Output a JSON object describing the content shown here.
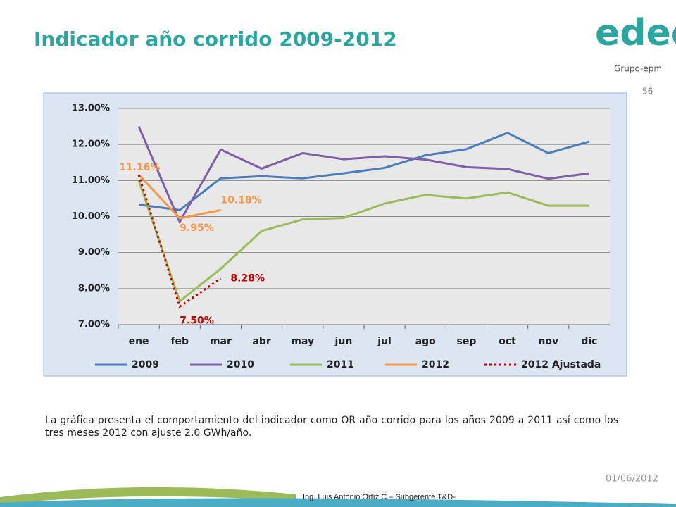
{
  "slide": {
    "title": "Indicador año corrido 2009-2012",
    "logo": "edeq",
    "group": "Grupo-epm",
    "page": "56",
    "text": "La gráfica presenta el comportamiento del indicador como OR año corrido para los años 2009 a 2011 así como los tres meses 2012 con ajuste 2.0 GWh/año.",
    "date": "01/06/2012",
    "footer": "Ing. Luis Antonio Ortíz C.– Subgerente T&D-"
  },
  "chart_data": {
    "type": "line",
    "categories": [
      "ene",
      "feb",
      "mar",
      "abr",
      "may",
      "jun",
      "jul",
      "ago",
      "sep",
      "oct",
      "nov",
      "dic"
    ],
    "ylim": [
      7,
      13
    ],
    "yticks": [
      {
        "value": 7,
        "label": "7.00%"
      },
      {
        "value": 8,
        "label": "8.00%"
      },
      {
        "value": 9,
        "label": "9.00%"
      },
      {
        "value": 10,
        "label": "10.00%"
      },
      {
        "value": 11,
        "label": "11.00%"
      },
      {
        "value": 12,
        "label": "12.00%"
      },
      {
        "value": 13,
        "label": "13.00%"
      }
    ],
    "grid": true,
    "legend": "bottom",
    "series": [
      {
        "name": "2009",
        "color": "#4a7ebb",
        "values": [
          10.33,
          10.18,
          11.06,
          11.12,
          11.06,
          11.2,
          11.35,
          11.7,
          11.87,
          12.32,
          11.76,
          12.08
        ]
      },
      {
        "name": "2010",
        "color": "#7f5ea8",
        "values": [
          12.5,
          9.85,
          11.86,
          11.33,
          11.76,
          11.59,
          11.67,
          11.58,
          11.37,
          11.32,
          11.05,
          11.2
        ]
      },
      {
        "name": "2011",
        "color": "#9bbb59",
        "values": [
          11.0,
          7.65,
          8.55,
          9.6,
          9.92,
          9.96,
          10.36,
          10.6,
          10.5,
          10.67,
          10.3,
          10.3
        ]
      },
      {
        "name": "2012",
        "color": "#f79646",
        "values": [
          11.16,
          9.95,
          10.18,
          null,
          null,
          null,
          null,
          null,
          null,
          null,
          null,
          null
        ],
        "value_labels": [
          "11.16%",
          "9.95%",
          "10.18%",
          null,
          null,
          null,
          null,
          null,
          null,
          null,
          null,
          null
        ]
      },
      {
        "name": "2012 Ajustada",
        "color": "#c00000",
        "dashed": true,
        "values": [
          11.16,
          7.5,
          8.28,
          null,
          null,
          null,
          null,
          null,
          null,
          null,
          null,
          null
        ],
        "value_labels": [
          null,
          "7.50%",
          "8.28%",
          null,
          null,
          null,
          null,
          null,
          null,
          null,
          null,
          null
        ]
      }
    ]
  }
}
